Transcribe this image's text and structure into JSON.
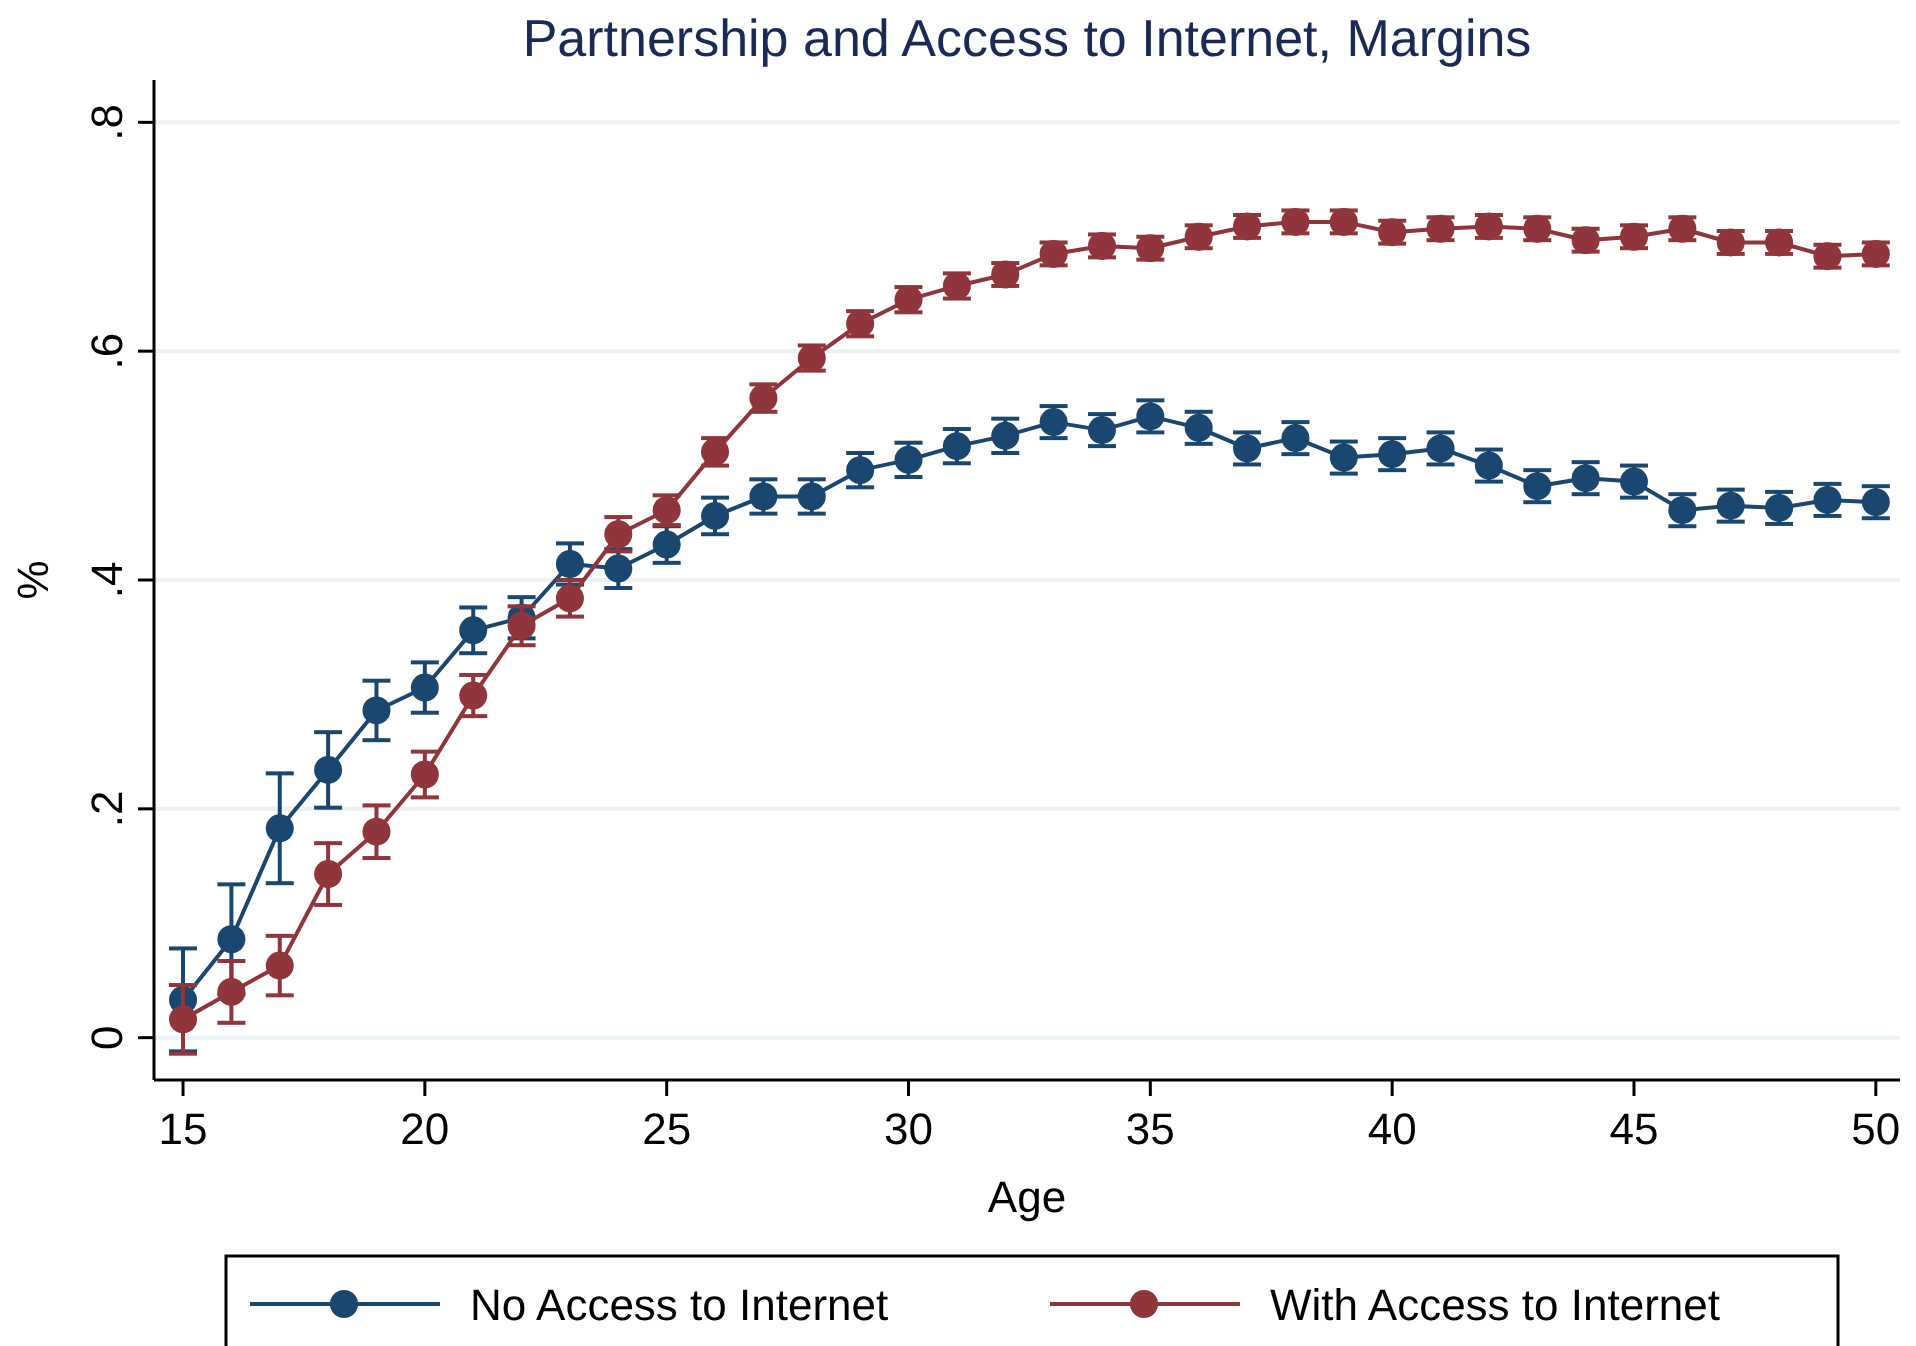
{
  "chart_data": {
    "type": "line",
    "title": "Partnership and Access to Internet, Margins",
    "xlabel": "Age",
    "ylabel": "%",
    "x": [
      15,
      16,
      17,
      18,
      19,
      20,
      21,
      22,
      23,
      24,
      25,
      26,
      27,
      28,
      29,
      30,
      31,
      32,
      33,
      34,
      35,
      36,
      37,
      38,
      39,
      40,
      41,
      42,
      43,
      44,
      45,
      46,
      47,
      48,
      49,
      50
    ],
    "series": [
      {
        "name": "No Access to Internet",
        "color": "#1a476f",
        "values": [
          0.033,
          0.086,
          0.183,
          0.234,
          0.286,
          0.306,
          0.356,
          0.367,
          0.414,
          0.41,
          0.431,
          0.456,
          0.473,
          0.473,
          0.496,
          0.505,
          0.517,
          0.526,
          0.538,
          0.531,
          0.543,
          0.533,
          0.515,
          0.524,
          0.507,
          0.51,
          0.515,
          0.5,
          0.482,
          0.489,
          0.486,
          0.461,
          0.465,
          0.463,
          0.47,
          0.468
        ],
        "errors": [
          0.045,
          0.048,
          0.048,
          0.033,
          0.026,
          0.022,
          0.02,
          0.018,
          0.018,
          0.017,
          0.016,
          0.016,
          0.015,
          0.015,
          0.015,
          0.015,
          0.015,
          0.015,
          0.014,
          0.014,
          0.014,
          0.014,
          0.014,
          0.014,
          0.014,
          0.014,
          0.014,
          0.014,
          0.014,
          0.014,
          0.014,
          0.014,
          0.014,
          0.014,
          0.014,
          0.014
        ]
      },
      {
        "name": "With Access to Internet",
        "color": "#90353b",
        "values": [
          0.016,
          0.04,
          0.063,
          0.143,
          0.18,
          0.23,
          0.299,
          0.36,
          0.384,
          0.44,
          0.461,
          0.512,
          0.559,
          0.594,
          0.624,
          0.645,
          0.657,
          0.667,
          0.685,
          0.692,
          0.69,
          0.7,
          0.709,
          0.713,
          0.713,
          0.704,
          0.707,
          0.709,
          0.707,
          0.697,
          0.7,
          0.707,
          0.695,
          0.695,
          0.683,
          0.685
        ],
        "errors": [
          0.03,
          0.027,
          0.026,
          0.027,
          0.023,
          0.02,
          0.018,
          0.017,
          0.016,
          0.015,
          0.013,
          0.012,
          0.012,
          0.011,
          0.011,
          0.011,
          0.011,
          0.01,
          0.01,
          0.01,
          0.01,
          0.01,
          0.01,
          0.01,
          0.01,
          0.01,
          0.01,
          0.01,
          0.01,
          0.01,
          0.01,
          0.01,
          0.01,
          0.01,
          0.01,
          0.01
        ]
      }
    ],
    "xlim": [
      14.4,
      50.5
    ],
    "xticks": [
      15,
      20,
      25,
      30,
      35,
      40,
      45,
      50
    ],
    "ylim": [
      -0.037,
      0.837
    ],
    "yticks": [
      {
        "value": 0,
        "label": "0"
      },
      {
        "value": 0.2,
        "label": ".2"
      },
      {
        "value": 0.4,
        "label": ".4"
      },
      {
        "value": 0.6,
        "label": ".6"
      },
      {
        "value": 0.8,
        "label": ".8"
      }
    ],
    "grid": "y",
    "legend": "bottom",
    "marker": "circle",
    "line_style": "solid"
  }
}
